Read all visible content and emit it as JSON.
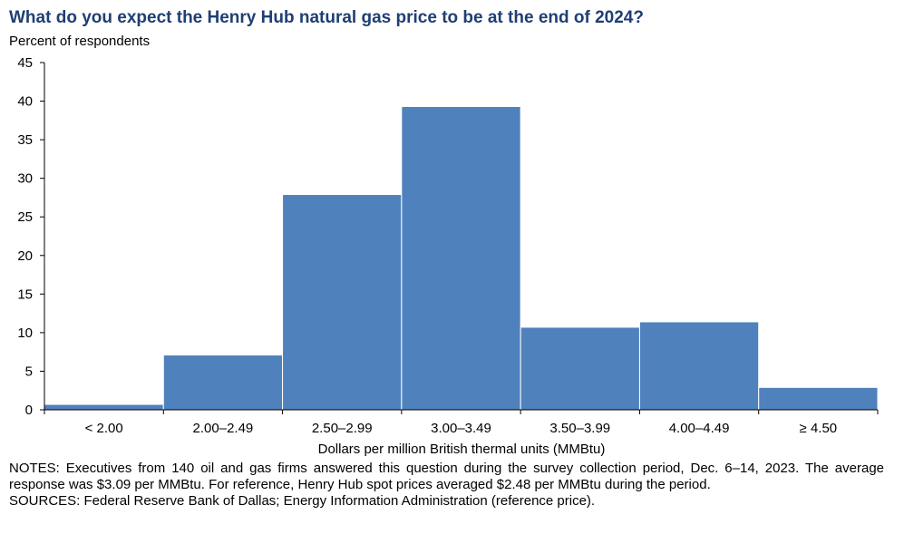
{
  "chart_data": {
    "type": "bar",
    "title": "What do you expect the Henry Hub natural gas price to be at the end of 2024?",
    "ylabel": "Percent of respondents",
    "xlabel": "Dollars per million British thermal units (MMBtu)",
    "categories": [
      "< 2.00",
      "2.00–2.49",
      "2.50–2.99",
      "3.00–3.49",
      "3.50–3.99",
      "4.00–4.49",
      "≥ 4.50"
    ],
    "values": [
      0.7,
      7.1,
      27.9,
      39.3,
      10.7,
      11.4,
      2.9
    ],
    "ylim": [
      0,
      45
    ],
    "yticks": [
      0,
      5,
      10,
      15,
      20,
      25,
      30,
      35,
      40,
      45
    ],
    "grid": false,
    "bar_color": "#4f81bd"
  },
  "notes": {
    "line1": "NOTES: Executives from 140 oil and gas firms answered this question during the survey collection period, Dec. 6–14, 2023. The average response was $3.09 per MMBtu. For reference, Henry Hub spot prices averaged $2.48 per MMBtu during the period.",
    "line2": "SOURCES: Federal Reserve Bank of Dallas; Energy Information Administration (reference price)."
  }
}
